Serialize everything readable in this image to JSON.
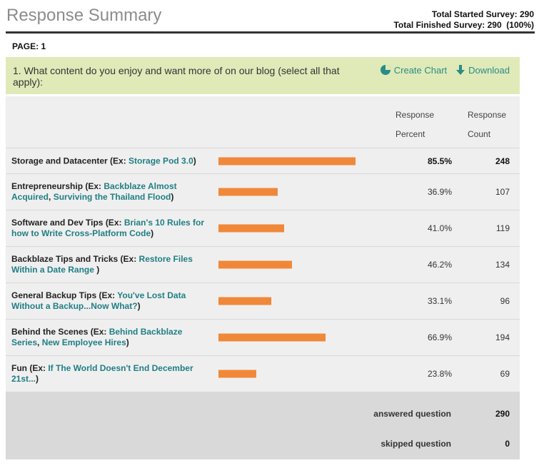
{
  "title": "Response Summary",
  "stats": {
    "started": "Total Started Survey: 290",
    "finished": "Total Finished Survey: 290  (100%)"
  },
  "page_label": "PAGE: 1",
  "question": {
    "text": "1. What content do you enjoy and want more of on our blog (select all that apply):",
    "create_chart": "Create Chart",
    "download": "Download"
  },
  "columns": {
    "pct_line1": "Response",
    "pct_line2": "Percent",
    "cnt_line1": "Response",
    "cnt_line2": "Count"
  },
  "rows": [
    {
      "prefix": "Storage and Datacenter (Ex: ",
      "links": [
        "Storage Pod 3.0"
      ],
      "sep": [],
      "suffix": ")",
      "percent": "85.5%",
      "fraction": 0.855,
      "count": "248"
    },
    {
      "prefix": "Entrepreneurship (Ex: ",
      "links": [
        "Backblaze Almost Acquired",
        "Surviving the Thailand Flood"
      ],
      "sep": [
        ", "
      ],
      "suffix": ")",
      "percent": "36.9%",
      "fraction": 0.369,
      "count": "107"
    },
    {
      "prefix": "Software and Dev Tips (Ex: ",
      "links": [
        "Brian's 10 Rules for how to Write Cross-Platform Code"
      ],
      "sep": [],
      "suffix": ")",
      "percent": "41.0%",
      "fraction": 0.41,
      "count": "119"
    },
    {
      "prefix": "Backblaze Tips and Tricks (Ex: ",
      "links": [
        "Restore Files Within a Date Range"
      ],
      "sep": [],
      "suffix": " )",
      "percent": "46.2%",
      "fraction": 0.462,
      "count": "134"
    },
    {
      "prefix": "General Backup Tips (Ex: ",
      "links": [
        "You've Lost Data Without a Backup...Now What?"
      ],
      "sep": [],
      "suffix": ")",
      "percent": "33.1%",
      "fraction": 0.331,
      "count": "96"
    },
    {
      "prefix": "Behind the Scenes (Ex: ",
      "links": [
        "Behind Backblaze Series",
        "New Employee Hires"
      ],
      "sep": [
        ", "
      ],
      "suffix": ")",
      "percent": "66.9%",
      "fraction": 0.669,
      "count": "194"
    },
    {
      "prefix": "Fun (Ex: ",
      "links": [
        "If The World Doesn't End December 21st..."
      ],
      "sep": [],
      "suffix": ")",
      "percent": "23.8%",
      "fraction": 0.238,
      "count": "69"
    }
  ],
  "footer": {
    "answered_label": "answered question",
    "answered_value": "290",
    "skipped_label": "skipped question",
    "skipped_value": "0"
  },
  "colors": {
    "bar": "#f0883a",
    "link": "#1f7f85",
    "question_bg": "#dfeab8"
  }
}
